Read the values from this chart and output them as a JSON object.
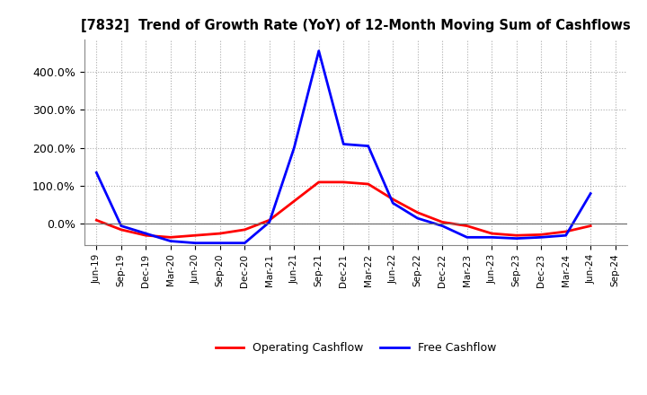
{
  "title": "[7832]  Trend of Growth Rate (YoY) of 12-Month Moving Sum of Cashflows",
  "x_labels": [
    "Jun-19",
    "Sep-19",
    "Dec-19",
    "Mar-20",
    "Jun-20",
    "Sep-20",
    "Dec-20",
    "Mar-21",
    "Jun-21",
    "Sep-21",
    "Dec-21",
    "Mar-22",
    "Jun-22",
    "Sep-22",
    "Dec-22",
    "Mar-23",
    "Jun-23",
    "Sep-23",
    "Dec-23",
    "Mar-24",
    "Jun-24",
    "Sep-24"
  ],
  "operating_cashflow": [
    0.1,
    -0.15,
    -0.3,
    -0.35,
    -0.3,
    -0.25,
    -0.15,
    0.1,
    0.6,
    1.1,
    1.1,
    1.05,
    0.65,
    0.3,
    0.05,
    -0.05,
    -0.25,
    -0.3,
    -0.28,
    -0.2,
    -0.05,
    null
  ],
  "free_cashflow": [
    1.35,
    -0.05,
    -0.25,
    -0.45,
    -0.5,
    -0.5,
    -0.5,
    0.05,
    2.0,
    4.55,
    2.1,
    2.05,
    0.55,
    0.15,
    -0.05,
    -0.35,
    -0.35,
    -0.38,
    -0.35,
    -0.3,
    0.8,
    null
  ],
  "operating_color": "#FF0000",
  "free_color": "#0000FF",
  "ylim_min": -0.55,
  "ylim_max": 4.85,
  "yticks": [
    0.0,
    1.0,
    2.0,
    3.0,
    4.0
  ],
  "background_color": "#FFFFFF",
  "grid_color": "#AAAAAA",
  "legend_labels": [
    "Operating Cashflow",
    "Free Cashflow"
  ]
}
